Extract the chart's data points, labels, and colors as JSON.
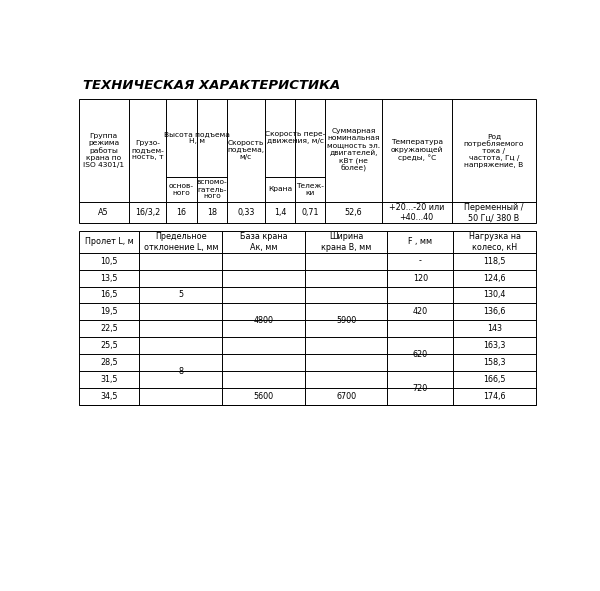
{
  "title": "ТЕХНИЧЕСКАЯ ХАРАКТЕРИСТИКА",
  "table1_col_headers": [
    "Группа\nрежима\nработы\nкрана по\nISO 4301/1",
    "Грузо-\nподъем-\nность, т",
    "Высота подъема\nН, м",
    "sub_height",
    "Скорость\nподъема,\nм/с",
    "Скорость пере-\nдвижения, м/с",
    "sub_speed",
    "Суммарная\nноминальная\nмощность эл.\nдвигателей,\nкВт (не\nболее)",
    "Температура\nокружающей\nсреды, °С",
    "Род\nпотребляемого\nтока /\nчастота, Гц /\nнапряжение, В"
  ],
  "table1_sub_height": [
    "основ-\nного",
    "вспомо-\nгатель-\nного"
  ],
  "table1_sub_speed": [
    "Крана",
    "Тележ-\nки"
  ],
  "table1_data": [
    "A5",
    "16/3,2",
    "16",
    "18",
    "0,33",
    "1,4",
    "0,71",
    "52,6",
    "+20...-20 или\n+40...40",
    "Переменный /\n50 Гц/ 380 В"
  ],
  "table1_col_widths": [
    46,
    35,
    28,
    28,
    35,
    28,
    28,
    52,
    65,
    78
  ],
  "table2_headers": [
    "Пролет L, м",
    "Предельное\nотклонение L, мм",
    "База крана\nАк, мм",
    "Ширина\nкрана В, мм",
    "F , мм",
    "Нагрузка на\nколесо, кН"
  ],
  "table2_col_widths": [
    55,
    75,
    75,
    75,
    60,
    75
  ],
  "table2_prolet": [
    "10,5",
    "13,5",
    "16,5",
    "19,5",
    "22,5",
    "25,5",
    "28,5",
    "31,5",
    "34,5"
  ],
  "table2_otklon": [
    {
      "rows": [
        0,
        4
      ],
      "val": "5"
    },
    {
      "rows": [
        5,
        8
      ],
      "val": "8"
    }
  ],
  "table2_baza": [
    {
      "rows": [
        0,
        7
      ],
      "val": "4800"
    },
    {
      "rows": [
        8,
        8
      ],
      "val": "5600"
    }
  ],
  "table2_shirina": [
    {
      "rows": [
        0,
        7
      ],
      "val": "5900"
    },
    {
      "rows": [
        8,
        8
      ],
      "val": "6700"
    }
  ],
  "table2_F": [
    {
      "rows": [
        0,
        0
      ],
      "val": "-"
    },
    {
      "rows": [
        1,
        1
      ],
      "val": "120"
    },
    {
      "rows": [
        2,
        4
      ],
      "val": "420"
    },
    {
      "rows": [
        5,
        6
      ],
      "val": "620"
    },
    {
      "rows": [
        7,
        8
      ],
      "val": "720"
    }
  ],
  "table2_load": [
    "118,5",
    "124,6",
    "130,4",
    "136,6",
    "143",
    "163,3",
    "158,3",
    "166,5",
    "174,6"
  ],
  "bg_color": "#ffffff",
  "text_color": "#000000",
  "line_color": "#000000"
}
